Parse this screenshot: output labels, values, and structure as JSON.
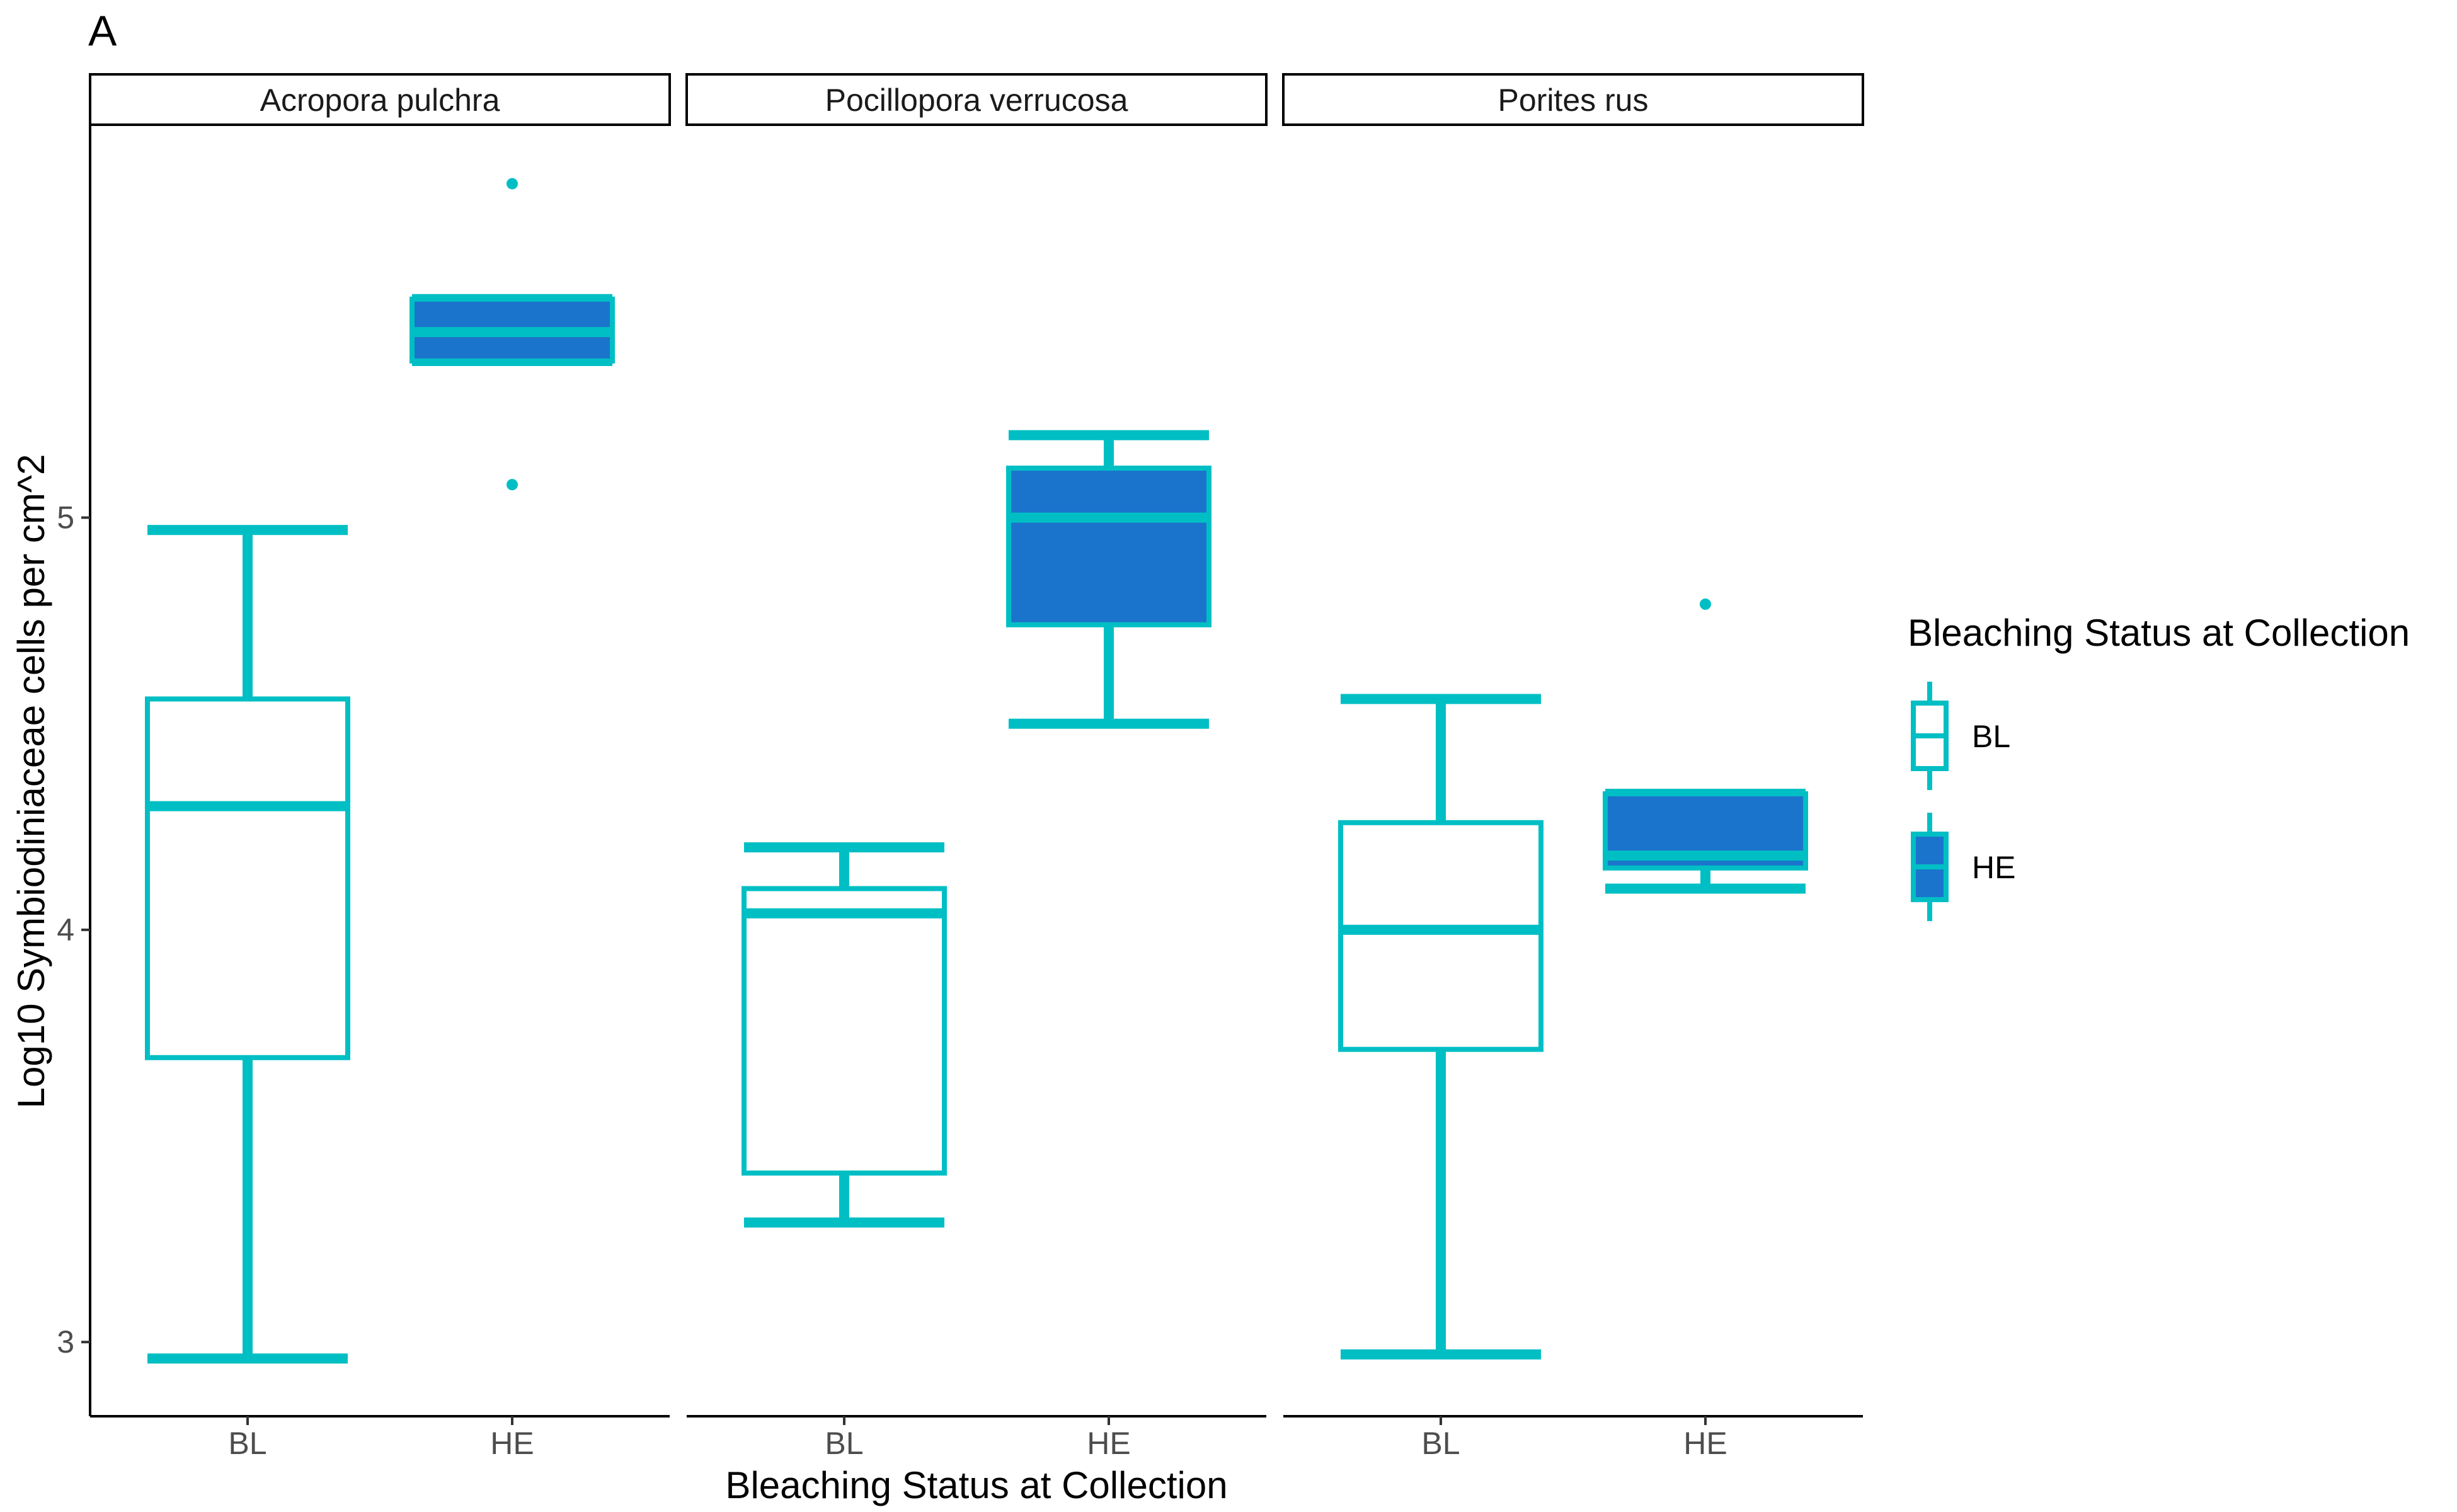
{
  "panel_label": "A",
  "chart_data": {
    "type": "box",
    "xlabel": "Bleaching Status at Collection",
    "ylabel": "Log10 Symbiodiniaceae cells per cm^2",
    "ylim": [
      2.82,
      5.95
    ],
    "yticks": [
      3,
      4,
      5
    ],
    "categories": [
      "BL",
      "HE"
    ],
    "facets": [
      {
        "name": "Acropora pulchra",
        "boxes": [
          {
            "group": "BL",
            "min": 2.96,
            "q1": 3.69,
            "median": 4.3,
            "q3": 4.56,
            "max": 4.97,
            "outliers": []
          },
          {
            "group": "HE",
            "min": 5.38,
            "q1": 5.38,
            "median": 5.45,
            "q3": 5.53,
            "max": 5.53,
            "outliers": [
              5.08,
              5.81
            ]
          }
        ]
      },
      {
        "name": "Pocillopora verrucosa",
        "boxes": [
          {
            "group": "BL",
            "min": 3.29,
            "q1": 3.41,
            "median": 4.04,
            "q3": 4.1,
            "max": 4.2,
            "outliers": []
          },
          {
            "group": "HE",
            "min": 4.5,
            "q1": 4.74,
            "median": 5.0,
            "q3": 5.12,
            "max": 5.2,
            "outliers": []
          }
        ]
      },
      {
        "name": "Porites rus",
        "boxes": [
          {
            "group": "BL",
            "min": 2.97,
            "q1": 3.71,
            "median": 4.0,
            "q3": 4.26,
            "max": 4.56,
            "outliers": []
          },
          {
            "group": "HE",
            "min": 4.1,
            "q1": 4.15,
            "median": 4.18,
            "q3": 4.33,
            "max": 4.33,
            "outliers": [
              4.79
            ]
          }
        ]
      }
    ],
    "legend": {
      "title": "Bleaching Status at Collection",
      "position": "right",
      "entries": [
        {
          "label": "BL",
          "fill": "#ffffff"
        },
        {
          "label": "HE",
          "fill": "#1b74cc"
        }
      ]
    },
    "colors": {
      "outline": "#00bfc4",
      "fill_HE": "#1b74cc",
      "fill_BL": "#ffffff"
    },
    "grid": false
  }
}
